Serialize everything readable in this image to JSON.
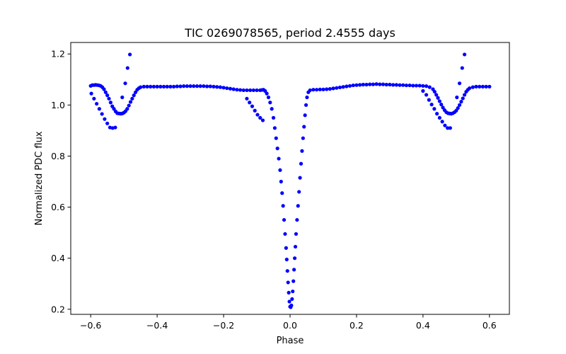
{
  "chart_data": {
    "type": "scatter",
    "title": "TIC 0269078565, period 2.4555 days",
    "xlabel": "Phase",
    "ylabel": "Normalized PDC flux",
    "xlim": [
      -0.66,
      0.66
    ],
    "ylim": [
      0.18,
      1.245
    ],
    "x_ticks": [
      -0.6,
      -0.4,
      -0.2,
      0.0,
      0.2,
      0.4,
      0.6
    ],
    "x_tick_labels": [
      "−0.6",
      "−0.4",
      "−0.2",
      "0.0",
      "0.2",
      "0.4",
      "0.6"
    ],
    "y_ticks": [
      0.2,
      0.4,
      0.6,
      0.8,
      1.0,
      1.2
    ],
    "y_tick_labels": [
      "0.2",
      "0.4",
      "0.6",
      "0.8",
      "1.0",
      "1.2"
    ],
    "grid": false,
    "marker_color": "#0000ff",
    "series": [
      {
        "values": [
          [
            -0.6,
            1.075
          ],
          [
            -0.595,
            1.078
          ],
          [
            -0.59,
            1.078
          ],
          [
            -0.585,
            1.079
          ],
          [
            -0.58,
            1.078
          ],
          [
            -0.575,
            1.077
          ],
          [
            -0.57,
            1.075
          ],
          [
            -0.565,
            1.07
          ],
          [
            -0.56,
            1.062
          ],
          [
            -0.555,
            1.05
          ],
          [
            -0.55,
            1.038
          ],
          [
            -0.545,
            1.025
          ],
          [
            -0.54,
            1.01
          ],
          [
            -0.535,
            0.995
          ],
          [
            -0.53,
            0.985
          ],
          [
            -0.525,
            0.975
          ],
          [
            -0.52,
            0.968
          ],
          [
            -0.515,
            0.967
          ],
          [
            -0.51,
            0.966
          ],
          [
            -0.505,
            0.967
          ],
          [
            -0.5,
            0.97
          ],
          [
            -0.495,
            0.976
          ],
          [
            -0.49,
            0.985
          ],
          [
            -0.485,
            0.998
          ],
          [
            -0.48,
            1.012
          ],
          [
            -0.475,
            1.025
          ],
          [
            -0.47,
            1.038
          ],
          [
            -0.465,
            1.05
          ],
          [
            -0.46,
            1.06
          ],
          [
            -0.455,
            1.066
          ],
          [
            -0.45,
            1.07
          ],
          [
            -0.44,
            1.072
          ],
          [
            -0.43,
            1.072
          ],
          [
            -0.42,
            1.072
          ],
          [
            -0.41,
            1.072
          ],
          [
            -0.4,
            1.072
          ],
          [
            -0.39,
            1.072
          ],
          [
            -0.38,
            1.072
          ],
          [
            -0.37,
            1.072
          ],
          [
            -0.36,
            1.072
          ],
          [
            -0.35,
            1.072
          ],
          [
            -0.34,
            1.073
          ],
          [
            -0.33,
            1.073
          ],
          [
            -0.32,
            1.074
          ],
          [
            -0.31,
            1.074
          ],
          [
            -0.3,
            1.074
          ],
          [
            -0.29,
            1.074
          ],
          [
            -0.28,
            1.074
          ],
          [
            -0.27,
            1.074
          ],
          [
            -0.26,
            1.074
          ],
          [
            -0.25,
            1.073
          ],
          [
            -0.24,
            1.073
          ],
          [
            -0.23,
            1.072
          ],
          [
            -0.22,
            1.071
          ],
          [
            -0.21,
            1.07
          ],
          [
            -0.2,
            1.068
          ],
          [
            -0.19,
            1.066
          ],
          [
            -0.18,
            1.064
          ],
          [
            -0.17,
            1.062
          ],
          [
            -0.16,
            1.06
          ],
          [
            -0.15,
            1.059
          ],
          [
            -0.14,
            1.058
          ],
          [
            -0.13,
            1.058
          ],
          [
            -0.12,
            1.058
          ],
          [
            -0.11,
            1.058
          ],
          [
            -0.1,
            1.058
          ],
          [
            -0.09,
            1.058
          ],
          [
            -0.085,
            1.059
          ],
          [
            -0.08,
            1.06
          ],
          [
            -0.075,
            1.055
          ],
          [
            -0.07,
            1.045
          ],
          [
            -0.065,
            1.03
          ],
          [
            -0.06,
            1.01
          ],
          [
            -0.055,
            0.985
          ],
          [
            -0.05,
            0.95
          ],
          [
            -0.046,
            0.91
          ],
          [
            -0.042,
            0.87
          ],
          [
            -0.038,
            0.83
          ],
          [
            -0.034,
            0.79
          ],
          [
            -0.03,
            0.745
          ],
          [
            -0.027,
            0.7
          ],
          [
            -0.024,
            0.655
          ],
          [
            -0.021,
            0.605
          ],
          [
            -0.018,
            0.55
          ],
          [
            -0.015,
            0.495
          ],
          [
            -0.012,
            0.44
          ],
          [
            -0.01,
            0.395
          ],
          [
            -0.008,
            0.35
          ],
          [
            -0.006,
            0.305
          ],
          [
            -0.004,
            0.265
          ],
          [
            -0.002,
            0.23
          ],
          [
            0.0,
            0.21
          ],
          [
            0.002,
            0.208
          ],
          [
            0.004,
            0.215
          ],
          [
            0.006,
            0.24
          ],
          [
            0.008,
            0.27
          ],
          [
            0.01,
            0.31
          ],
          [
            0.012,
            0.355
          ],
          [
            0.014,
            0.4
          ],
          [
            0.016,
            0.445
          ],
          [
            0.018,
            0.495
          ],
          [
            0.021,
            0.55
          ],
          [
            0.024,
            0.605
          ],
          [
            0.027,
            0.66
          ],
          [
            0.03,
            0.715
          ],
          [
            0.033,
            0.77
          ],
          [
            0.036,
            0.82
          ],
          [
            0.039,
            0.87
          ],
          [
            0.042,
            0.915
          ],
          [
            0.045,
            0.96
          ],
          [
            0.048,
            1.0
          ],
          [
            0.051,
            1.03
          ],
          [
            0.055,
            1.05
          ],
          [
            0.06,
            1.058
          ],
          [
            0.07,
            1.06
          ],
          [
            0.08,
            1.06
          ],
          [
            0.09,
            1.061
          ],
          [
            0.1,
            1.061
          ],
          [
            0.11,
            1.062
          ],
          [
            0.12,
            1.063
          ],
          [
            0.13,
            1.065
          ],
          [
            0.14,
            1.067
          ],
          [
            0.15,
            1.069
          ],
          [
            0.16,
            1.071
          ],
          [
            0.17,
            1.073
          ],
          [
            0.18,
            1.075
          ],
          [
            0.19,
            1.077
          ],
          [
            0.2,
            1.078
          ],
          [
            0.21,
            1.079
          ],
          [
            0.22,
            1.08
          ],
          [
            0.23,
            1.08
          ],
          [
            0.24,
            1.081
          ],
          [
            0.25,
            1.081
          ],
          [
            0.26,
            1.082
          ],
          [
            0.27,
            1.081
          ],
          [
            0.28,
            1.081
          ],
          [
            0.29,
            1.08
          ],
          [
            0.3,
            1.08
          ],
          [
            0.31,
            1.079
          ],
          [
            0.32,
            1.079
          ],
          [
            0.33,
            1.078
          ],
          [
            0.34,
            1.078
          ],
          [
            0.35,
            1.077
          ],
          [
            0.36,
            1.077
          ],
          [
            0.37,
            1.076
          ],
          [
            0.38,
            1.076
          ],
          [
            0.39,
            1.076
          ],
          [
            0.4,
            1.075
          ],
          [
            0.41,
            1.074
          ],
          [
            0.42,
            1.07
          ],
          [
            0.43,
            1.062
          ],
          [
            0.435,
            1.052
          ],
          [
            0.44,
            1.04
          ],
          [
            0.445,
            1.028
          ],
          [
            0.45,
            1.015
          ],
          [
            0.455,
            1.002
          ],
          [
            0.46,
            0.99
          ],
          [
            0.465,
            0.98
          ],
          [
            0.47,
            0.972
          ],
          [
            0.475,
            0.968
          ],
          [
            0.48,
            0.967
          ],
          [
            0.485,
            0.966
          ],
          [
            0.49,
            0.968
          ],
          [
            0.495,
            0.972
          ],
          [
            0.5,
            0.978
          ],
          [
            0.505,
            0.988
          ],
          [
            0.51,
            1.0
          ],
          [
            0.515,
            1.013
          ],
          [
            0.52,
            1.026
          ],
          [
            0.525,
            1.04
          ],
          [
            0.53,
            1.052
          ],
          [
            0.535,
            1.06
          ],
          [
            0.54,
            1.066
          ],
          [
            0.55,
            1.07
          ],
          [
            0.56,
            1.072
          ],
          [
            0.57,
            1.072
          ],
          [
            0.58,
            1.072
          ],
          [
            0.59,
            1.072
          ],
          [
            0.6,
            1.072
          ]
        ]
      },
      {
        "values": [
          [
            -0.598,
            1.045
          ],
          [
            -0.59,
            1.025
          ],
          [
            -0.582,
            1.005
          ],
          [
            -0.574,
            0.985
          ],
          [
            -0.566,
            0.965
          ],
          [
            -0.558,
            0.945
          ],
          [
            -0.55,
            0.928
          ],
          [
            -0.542,
            0.912
          ],
          [
            -0.534,
            0.91
          ],
          [
            -0.526,
            0.912
          ],
          [
            -0.505,
            1.03
          ],
          [
            -0.496,
            1.085
          ],
          [
            -0.489,
            1.145
          ],
          [
            -0.482,
            1.198
          ],
          [
            -0.13,
            1.025
          ],
          [
            -0.122,
            1.01
          ],
          [
            -0.114,
            0.995
          ],
          [
            -0.106,
            0.978
          ],
          [
            -0.098,
            0.962
          ],
          [
            -0.09,
            0.95
          ],
          [
            -0.082,
            0.94
          ],
          [
            0.4,
            1.055
          ],
          [
            0.41,
            1.04
          ],
          [
            0.418,
            1.02
          ],
          [
            0.426,
            1.002
          ],
          [
            0.434,
            0.985
          ],
          [
            0.442,
            0.966
          ],
          [
            0.45,
            0.95
          ],
          [
            0.458,
            0.935
          ],
          [
            0.466,
            0.92
          ],
          [
            0.474,
            0.91
          ],
          [
            0.482,
            0.91
          ],
          [
            0.502,
            1.03
          ],
          [
            0.51,
            1.085
          ],
          [
            0.518,
            1.145
          ],
          [
            0.525,
            1.198
          ]
        ]
      }
    ]
  }
}
